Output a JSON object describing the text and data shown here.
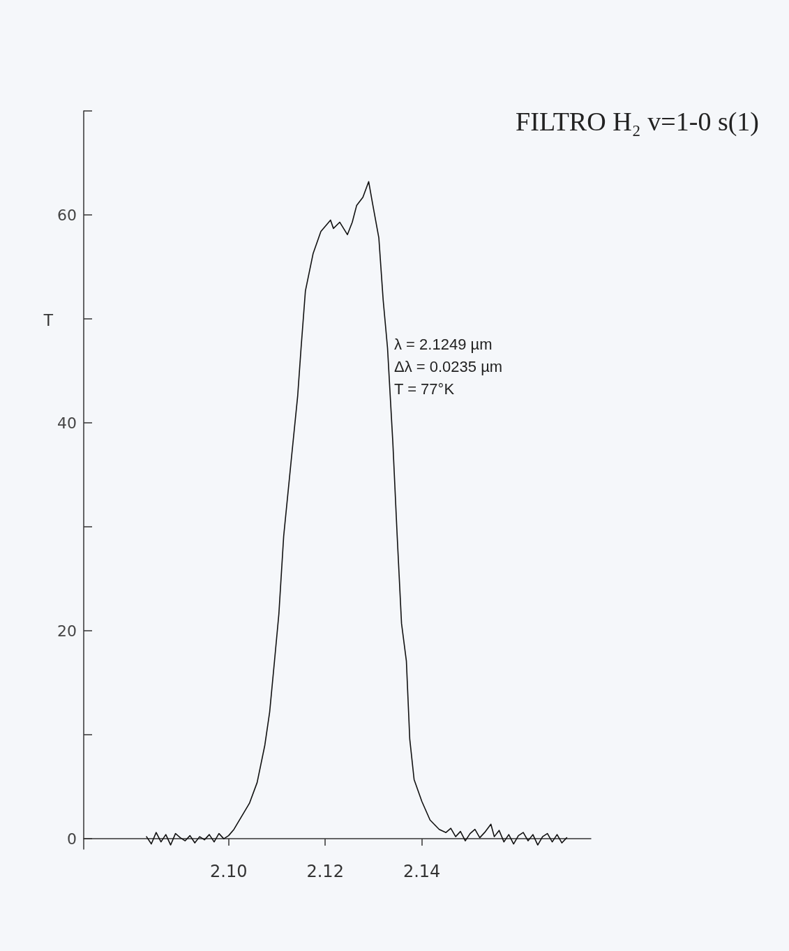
{
  "chart_data": {
    "type": "line",
    "title": "FILTRO H₂ v=1-0 s(1)",
    "ylabel": "T",
    "annotations": [
      "λ = 2.1249 µm",
      "Δλ = 0.0235 µm",
      "T = 77°K"
    ],
    "x": [
      2.083,
      2.084,
      2.085,
      2.086,
      2.087,
      2.088,
      2.089,
      2.09,
      2.091,
      2.092,
      2.093,
      2.094,
      2.095,
      2.096,
      2.097,
      2.098,
      2.099,
      2.1,
      2.1011,
      2.1043,
      2.1059,
      2.1075,
      2.1085,
      2.1095,
      2.1104,
      2.1114,
      2.113,
      2.1143,
      2.115,
      2.1159,
      2.1175,
      2.1191,
      2.1211,
      2.1217,
      2.123,
      2.1246,
      2.1256,
      2.1265,
      2.1278,
      2.129,
      2.1298,
      2.1311,
      2.132,
      2.1329,
      2.134,
      2.1349,
      2.1358,
      2.1368,
      2.1375,
      2.1384,
      2.14,
      2.1417,
      2.1436,
      2.145,
      2.146,
      2.147,
      2.148,
      2.149,
      2.15,
      2.151,
      2.152,
      2.153,
      2.1543,
      2.155,
      2.156,
      2.157,
      2.158,
      2.159,
      2.16,
      2.161,
      2.162,
      2.163,
      2.164,
      2.165,
      2.166,
      2.167,
      2.168,
      2.169,
      2.17
    ],
    "series": [
      {
        "color": "#111111",
        "values": [
          0.2,
          -0.5,
          0.6,
          -0.3,
          0.4,
          -0.6,
          0.5,
          0.1,
          -0.2,
          0.3,
          -0.4,
          0.2,
          -0.1,
          0.4,
          -0.3,
          0.5,
          0.0,
          0.3,
          0.9,
          3.4,
          5.4,
          9.0,
          12.2,
          17.1,
          21.6,
          29.1,
          36.6,
          42.6,
          47.2,
          52.7,
          56.3,
          58.4,
          59.5,
          58.7,
          59.3,
          58.1,
          59.3,
          60.9,
          61.7,
          63.2,
          61.1,
          57.8,
          51.8,
          47.2,
          38.1,
          29.1,
          20.7,
          17.1,
          9.6,
          5.7,
          3.6,
          1.8,
          0.9,
          0.6,
          1.0,
          0.2,
          0.7,
          -0.2,
          0.5,
          0.9,
          0.1,
          0.6,
          1.4,
          0.2,
          0.8,
          -0.3,
          0.4,
          -0.5,
          0.3,
          0.6,
          -0.2,
          0.4,
          -0.6,
          0.2,
          0.5,
          -0.3,
          0.4,
          -0.4,
          0.1
        ]
      }
    ],
    "xlim": [
      2.07,
      2.175
    ],
    "xticks": [
      {
        "value": 2.1,
        "label": "2.10"
      },
      2.12,
      2.14
    ],
    "ylim": [
      -1,
      70
    ],
    "yticks": [
      0,
      {
        "value": 10,
        "label": null
      },
      20,
      {
        "value": 30,
        "label": null
      },
      40,
      {
        "value": 50,
        "label": null
      },
      60,
      {
        "value": 70,
        "label": null
      }
    ],
    "grid": false,
    "marker": "none",
    "line_style": "solid"
  }
}
